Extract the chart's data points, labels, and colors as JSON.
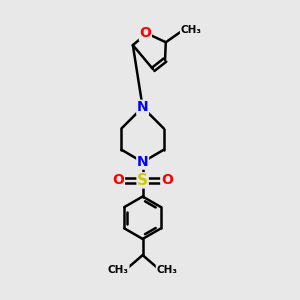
{
  "background_color": "#e8e8e8",
  "bond_color": "#000000",
  "bond_width": 1.8,
  "N_color": "#0000ff",
  "O_color": "#ff0000",
  "S_color": "#cccc00",
  "font_size": 10,
  "fig_size": [
    3.0,
    3.0
  ],
  "dpi": 100,
  "xlim": [
    0,
    10
  ],
  "ylim": [
    0,
    10
  ]
}
